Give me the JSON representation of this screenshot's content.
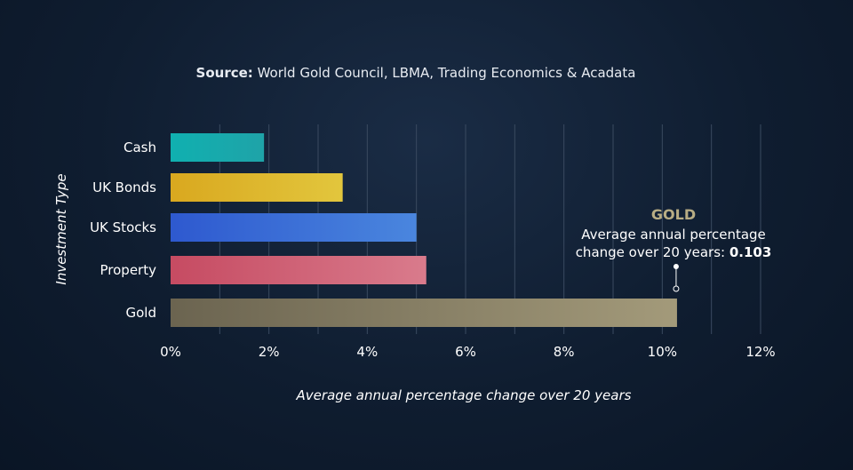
{
  "source": {
    "label": "Source:",
    "text": "World Gold Council, LBMA, Trading Economics & Acadata"
  },
  "chart_data": {
    "type": "bar",
    "orientation": "horizontal",
    "categories": [
      "Cash",
      "UK Bonds",
      "UK Stocks",
      "Property",
      "Gold"
    ],
    "values": [
      0.019,
      0.035,
      0.05,
      0.052,
      0.103
    ],
    "colors": [
      [
        "#10b0b0",
        "#1fa3a8"
      ],
      [
        "#d9a81f",
        "#e2c63d"
      ],
      [
        "#2e59cf",
        "#4a86de"
      ],
      [
        "#c64b62",
        "#d97b8c"
      ],
      [
        "#6b6450",
        "#a39a7a"
      ]
    ],
    "xlabel": "Average annual percentage change over 20 years",
    "ylabel": "Investment Type",
    "xlim": [
      0,
      0.12
    ],
    "xticks": [
      0,
      0.02,
      0.04,
      0.06,
      0.08,
      0.1,
      0.12
    ],
    "xtick_labels": [
      "0%",
      "2%",
      "4%",
      "6%",
      "8%",
      "10%",
      "12%"
    ],
    "grid": true,
    "annotation": {
      "category": "Gold",
      "title": "GOLD",
      "line1": "Average annual percentage",
      "line2": "change over 20 years:",
      "value": "0.103",
      "title_color": "#b8ad84"
    }
  }
}
